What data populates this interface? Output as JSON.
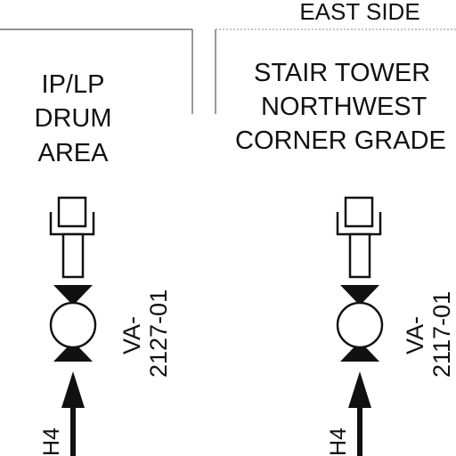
{
  "header": {
    "east_side": "EAST SIDE"
  },
  "left_panel": {
    "area_lines": [
      "IP/LP",
      "DRUM",
      "AREA"
    ],
    "valve": {
      "tag_prefix": "VA-",
      "tag_number": "2127-01"
    },
    "line_tag": "H4"
  },
  "right_panel": {
    "area_lines": [
      "STAIR TOWER",
      "NORTHWEST",
      "CORNER GRADE"
    ],
    "valve": {
      "tag_prefix": "VA-",
      "tag_number": "2117-01"
    },
    "line_tag": "H4"
  },
  "colors": {
    "ink": "#111111",
    "background": "#ffffff"
  }
}
